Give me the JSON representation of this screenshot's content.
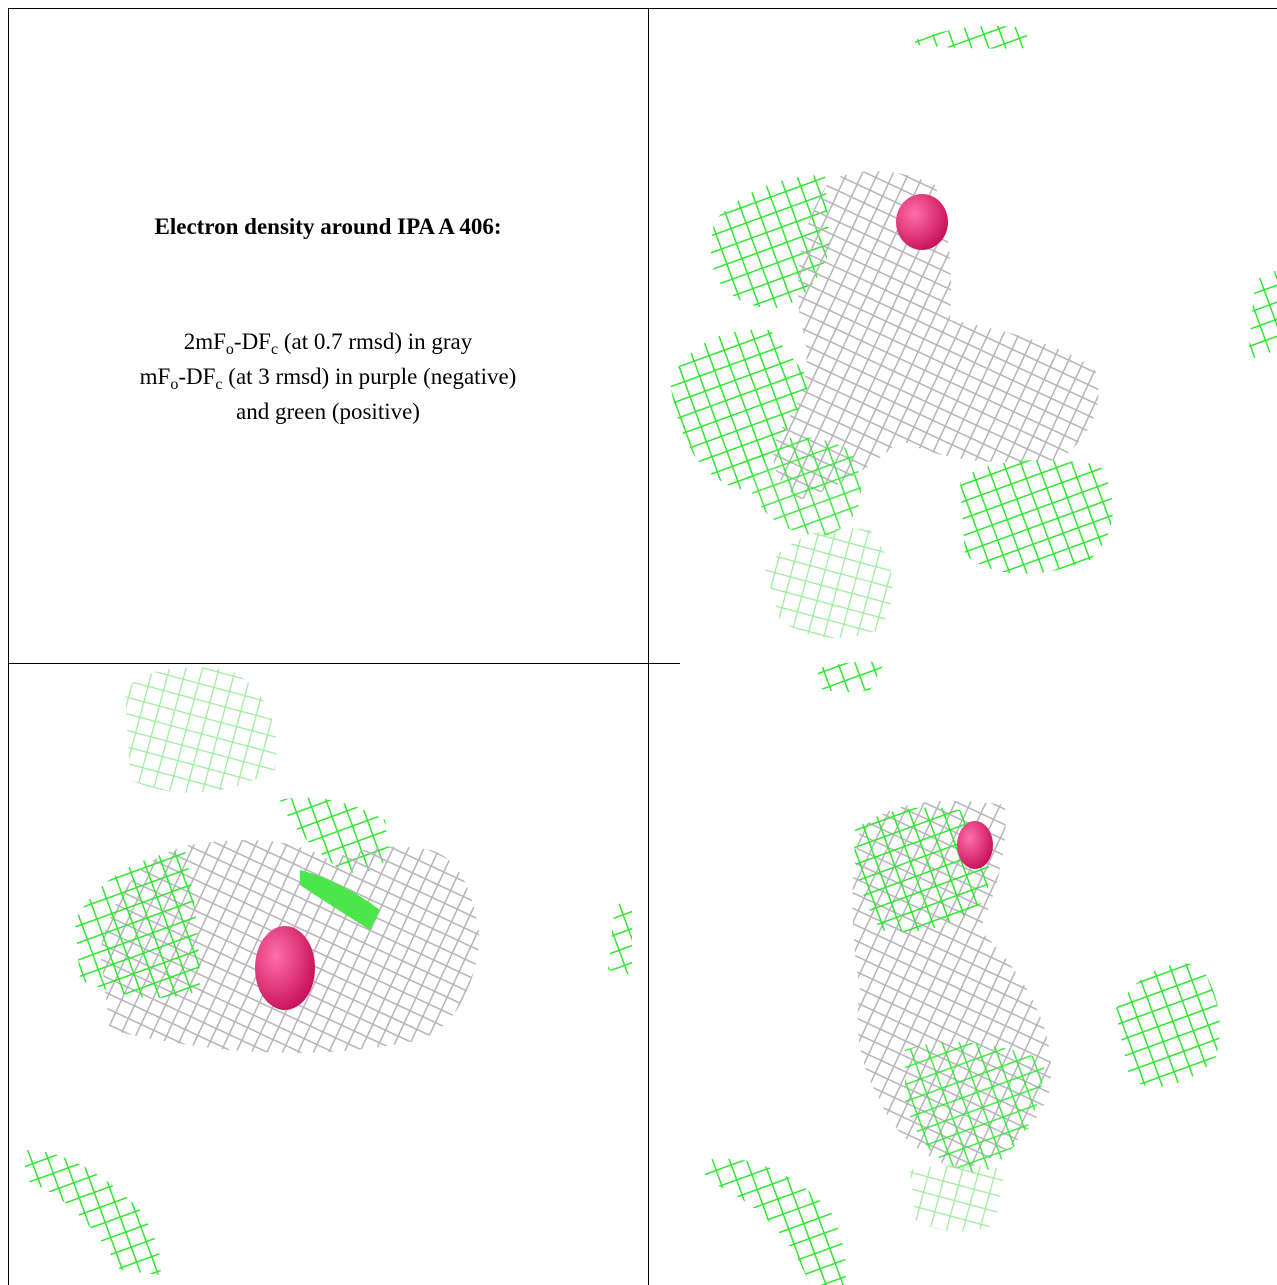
{
  "caption": {
    "title": "Electron density around IPA A 406:",
    "lines": [
      [
        {
          "text": "2mF"
        },
        {
          "text": "o",
          "sub": true
        },
        {
          "text": "-DF"
        },
        {
          "text": "c",
          "sub": true
        },
        {
          "text": " (at 0.7 rmsd) in gray"
        }
      ],
      [
        {
          "text": "mF"
        },
        {
          "text": "o",
          "sub": true
        },
        {
          "text": "-DF"
        },
        {
          "text": "c",
          "sub": true
        },
        {
          "text": " (at 3 rmsd) in purple (negative)"
        }
      ],
      [
        {
          "text": "and green (positive)"
        }
      ]
    ]
  }
}
